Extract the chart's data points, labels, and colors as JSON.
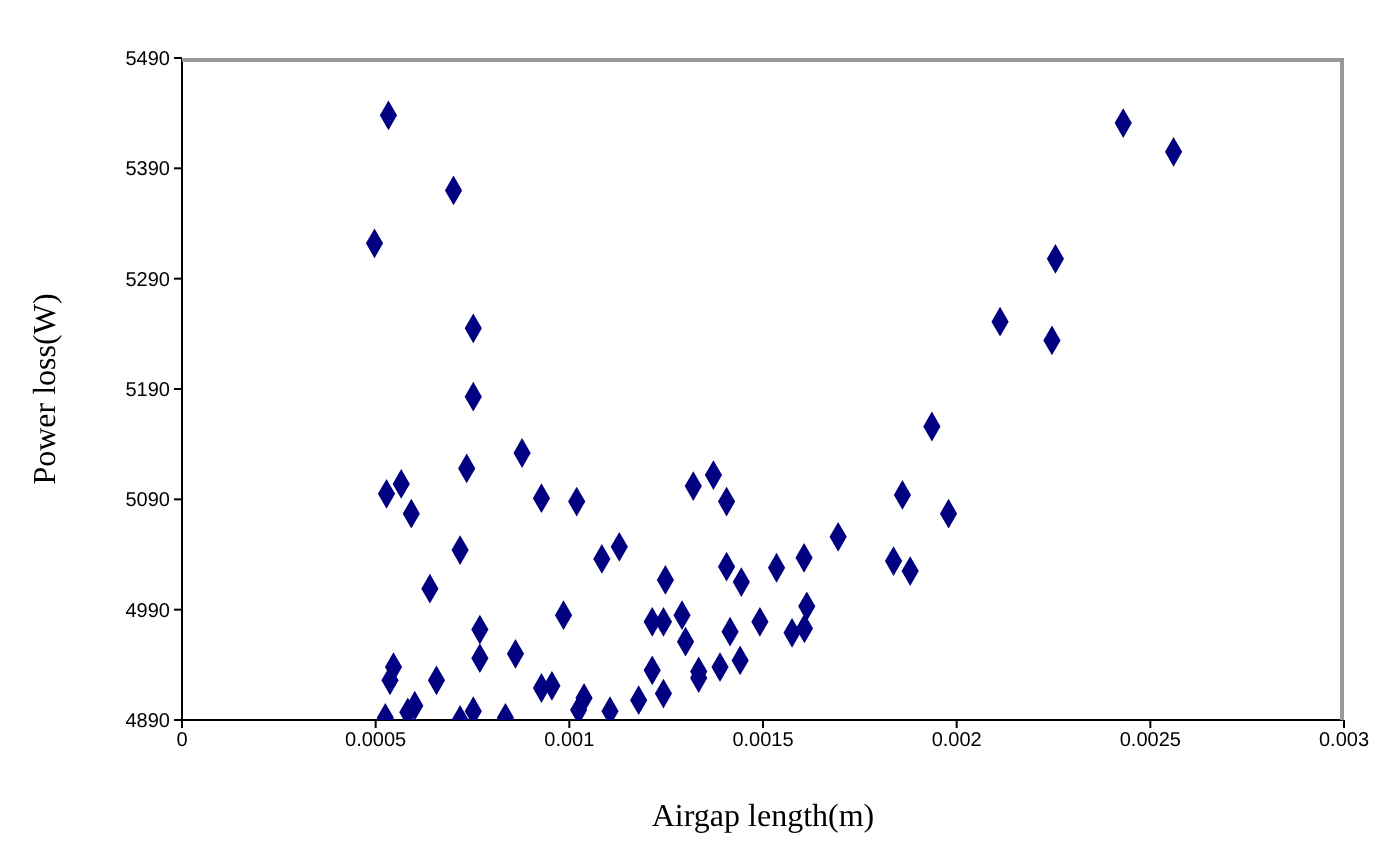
{
  "chart_data": {
    "type": "scatter",
    "xlabel": "Airgap length(m)",
    "ylabel": "Power loss(W)",
    "series": [
      {
        "color": "#000080",
        "x": [
          0.000533,
          0.000701,
          0.000497,
          0.000752,
          0.000752,
          0.000528,
          0.000566,
          0.000592,
          0.000735,
          0.000878,
          0.000928,
          0.001019,
          0.000718,
          0.00064,
          0.001084,
          0.001129,
          0.001248,
          0.00132,
          0.001372,
          0.001406,
          0.001406,
          0.001444,
          0.000985,
          0.001214,
          0.001243,
          0.001291,
          0.0013,
          0.001415,
          0.000769,
          0.000769,
          0.000861,
          0.000546,
          0.000537,
          0.000657,
          0.001214,
          0.001334,
          0.001334,
          0.001389,
          0.001441,
          0.000928,
          0.000955,
          0.001243,
          0.001179,
          0.001038,
          0.001024,
          0.001105,
          0.000601,
          0.000583,
          0.000525,
          0.000718,
          0.000752,
          0.000835,
          0.00243,
          0.00256,
          0.002255,
          0.002112,
          0.002246,
          0.001936,
          0.00186,
          0.001979,
          0.001694,
          0.001606,
          0.001535,
          0.001837,
          0.00188,
          0.001613,
          0.001492,
          0.001575,
          0.001607
        ],
        "values": [
          5438,
          5370,
          5322,
          5245,
          5183,
          5095,
          5104,
          5077,
          5118,
          5132,
          5091,
          5088,
          5044,
          5009,
          5036,
          5047,
          5017,
          5102,
          5112,
          5088,
          5029,
          5015,
          4985,
          4979,
          4979,
          4985,
          4961,
          4970,
          4972,
          4946,
          4950,
          4938,
          4926,
          4926,
          4935,
          4934,
          4928,
          4938,
          4944,
          4919,
          4921,
          4914,
          4908,
          4910,
          4899,
          4898,
          4903,
          4897,
          4892,
          4890,
          4898,
          4892,
          5431,
          5405,
          5308,
          5251,
          5234,
          5156,
          5094,
          5077,
          5056,
          5037,
          5028,
          5034,
          5025,
          4993,
          4979,
          4969,
          4973
        ]
      }
    ],
    "xlim": [
      0,
      0.003
    ],
    "xticks": [
      0,
      0.0005,
      0.001,
      0.0015,
      0.002,
      0.0025,
      0.003
    ],
    "ylim": [
      4890,
      5490
    ],
    "yticks": [
      4890,
      4990,
      5090,
      5190,
      5290,
      5390,
      5490
    ],
    "marker": "diamond",
    "grid": false,
    "legend": false
  }
}
